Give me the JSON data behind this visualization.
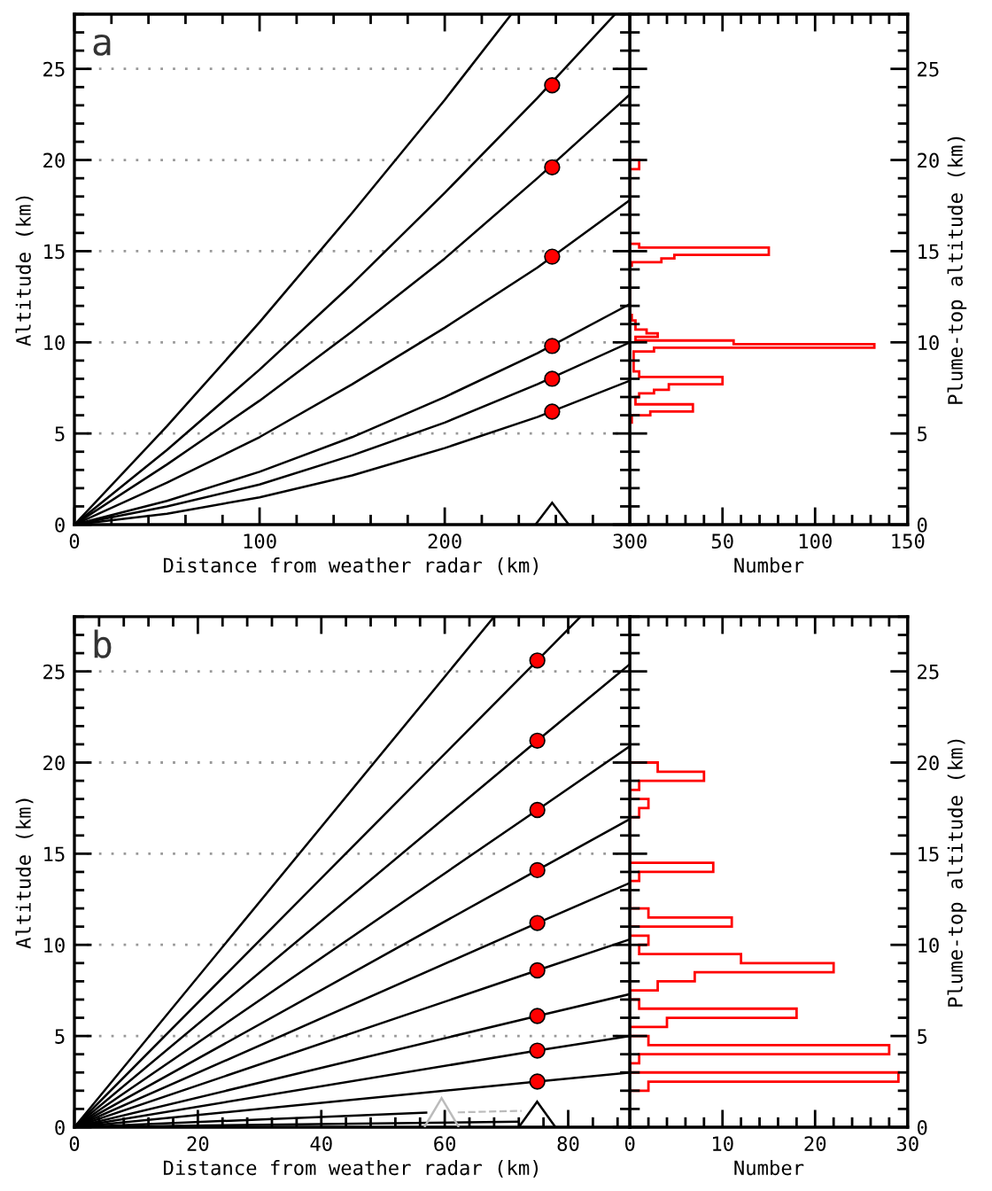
{
  "chart_data": [
    {
      "type": "line",
      "title": "a",
      "xlabel": "Distance from weather radar (km)",
      "ylabel": "Altitude (km)",
      "xlim": [
        0,
        300
      ],
      "xticks": [
        0,
        100,
        200,
        300
      ],
      "ylim": [
        0,
        28
      ],
      "yticks": [
        0,
        5,
        10,
        15,
        20,
        25
      ],
      "grid": "y",
      "series": [
        {
          "type": "line",
          "color": "#000000",
          "x": [
            0,
            50,
            100,
            150,
            200,
            250,
            300
          ],
          "values": [
            0,
            0.6,
            1.5,
            2.7,
            4.2,
            5.9,
            7.9
          ]
        },
        {
          "type": "line",
          "color": "#000000",
          "x": [
            0,
            50,
            100,
            150,
            200,
            250,
            300
          ],
          "values": [
            0,
            1.0,
            2.2,
            3.8,
            5.6,
            7.7,
            10.0
          ]
        },
        {
          "type": "line",
          "color": "#000000",
          "x": [
            0,
            50,
            100,
            150,
            200,
            250,
            300
          ],
          "values": [
            0,
            1.3,
            2.9,
            4.8,
            7.0,
            9.4,
            12.1
          ]
        },
        {
          "type": "line",
          "color": "#000000",
          "x": [
            0,
            50,
            100,
            150,
            200,
            250,
            300
          ],
          "values": [
            0,
            2.3,
            4.8,
            7.7,
            10.8,
            14.1,
            17.8
          ]
        },
        {
          "type": "line",
          "color": "#000000",
          "x": [
            0,
            50,
            100,
            150,
            200,
            250,
            300
          ],
          "values": [
            0,
            3.3,
            6.8,
            10.6,
            14.6,
            19.0,
            23.6
          ]
        },
        {
          "type": "line",
          "color": "#000000",
          "x": [
            0,
            50,
            100,
            150,
            200,
            250,
            292
          ],
          "values": [
            0,
            4.1,
            8.5,
            13.2,
            18.2,
            23.4,
            28
          ]
        },
        {
          "type": "line",
          "color": "#000000",
          "x": [
            0,
            50,
            100,
            150,
            200,
            236
          ],
          "values": [
            0,
            5.4,
            11.1,
            17.1,
            23.3,
            28
          ]
        },
        {
          "type": "scatter",
          "color": "#ff0000",
          "marker": "circle",
          "x": [
            258,
            258,
            258,
            258,
            258,
            258
          ],
          "values": [
            6.2,
            8.0,
            9.8,
            14.7,
            19.6,
            24.1
          ]
        }
      ]
    },
    {
      "type": "histogram",
      "orientation": "horizontal",
      "color": "#ff0000",
      "xlabel": "Number",
      "ylabel": "Plume-top altitude (km)",
      "xlim": [
        0,
        150
      ],
      "xticks": [
        {
          "value": 0,
          "label": null
        },
        50,
        100,
        150
      ],
      "ylim": [
        0,
        28
      ],
      "yticks": [
        0,
        5,
        10,
        15,
        20,
        25
      ],
      "bins": [
        5.6,
        6.0,
        6.2,
        6.6,
        7.0,
        7.2,
        7.4,
        7.7,
        8.1,
        8.4,
        9.5,
        9.7,
        9.9,
        10.1,
        10.3,
        10.5,
        10.7,
        11.2,
        11.5,
        14.2,
        14.4,
        14.6,
        14.8,
        15.2,
        15.4,
        19.5,
        20.0
      ],
      "values": [
        1,
        11,
        34,
        3,
        5,
        13,
        21,
        50,
        5,
        2,
        13,
        132,
        56,
        3,
        15,
        9,
        3,
        1,
        0,
        1,
        17,
        24,
        75,
        5,
        0,
        5
      ]
    },
    {
      "type": "line",
      "title": "b",
      "xlabel": "Distance from weather radar (km)",
      "ylabel": "Altitude (km)",
      "xlim": [
        0,
        90
      ],
      "xticks": [
        0,
        20,
        40,
        60,
        80
      ],
      "ylim": [
        0,
        28
      ],
      "yticks": [
        0,
        5,
        10,
        15,
        20,
        25
      ],
      "grid": "y",
      "series": [
        {
          "type": "line",
          "color": "#000000",
          "x": [
            0,
            72
          ],
          "values": [
            0,
            0.3
          ]
        },
        {
          "type": "line",
          "color": "#000000",
          "x": [
            0,
            57
          ],
          "values": [
            0,
            0.8
          ]
        },
        {
          "type": "line",
          "color": "#000000",
          "x": [
            0,
            75,
            90
          ],
          "values": [
            0,
            2.5,
            3.0
          ]
        },
        {
          "type": "line",
          "color": "#000000",
          "x": [
            0,
            75,
            90
          ],
          "values": [
            0,
            4.2,
            5.0
          ]
        },
        {
          "type": "line",
          "color": "#000000",
          "x": [
            0,
            75,
            90
          ],
          "values": [
            0,
            6.1,
            7.3
          ]
        },
        {
          "type": "line",
          "color": "#000000",
          "x": [
            0,
            75,
            90
          ],
          "values": [
            0,
            8.6,
            10.3
          ]
        },
        {
          "type": "line",
          "color": "#000000",
          "x": [
            0,
            75,
            90
          ],
          "values": [
            0,
            11.2,
            13.4
          ]
        },
        {
          "type": "line",
          "color": "#000000",
          "x": [
            0,
            75,
            90
          ],
          "values": [
            0,
            14.1,
            16.9
          ]
        },
        {
          "type": "line",
          "color": "#000000",
          "x": [
            0,
            75,
            90
          ],
          "values": [
            0,
            17.4,
            20.9
          ]
        },
        {
          "type": "line",
          "color": "#000000",
          "x": [
            0,
            75,
            90
          ],
          "values": [
            0,
            21.2,
            25.4
          ]
        },
        {
          "type": "line",
          "color": "#000000",
          "x": [
            0,
            75,
            82
          ],
          "values": [
            0,
            25.6,
            28
          ]
        },
        {
          "type": "line",
          "color": "#000000",
          "x": [
            0,
            68
          ],
          "values": [
            0,
            28
          ]
        },
        {
          "type": "scatter",
          "color": "#ff0000",
          "marker": "circle",
          "x": [
            75,
            75,
            75,
            75,
            75,
            75,
            75,
            75,
            75
          ],
          "values": [
            2.5,
            4.2,
            6.1,
            8.6,
            11.2,
            14.1,
            17.4,
            21.2,
            25.6
          ]
        }
      ]
    },
    {
      "type": "histogram",
      "orientation": "horizontal",
      "color": "#ff0000",
      "xlabel": "Number",
      "ylabel": "Plume-top altitude (km)",
      "xlim": [
        0,
        30
      ],
      "xticks": [
        0,
        10,
        20,
        30
      ],
      "ylim": [
        0,
        28
      ],
      "yticks": [
        0,
        5,
        10,
        15,
        20,
        25
      ],
      "bins": [
        2.0,
        2.5,
        3.0,
        3.5,
        4.0,
        4.5,
        5.0,
        5.5,
        6.0,
        6.5,
        7.0,
        7.5,
        8.0,
        8.5,
        9.0,
        9.5,
        10.0,
        10.5,
        11.0,
        11.5,
        12.0,
        12.5,
        13.0,
        13.5,
        14.0,
        14.5,
        15.0,
        15.5,
        16.0,
        16.5,
        17.0,
        17.5,
        18.0,
        18.5,
        19.0,
        19.5,
        20.0
      ],
      "values": [
        2,
        29,
        0,
        1,
        28,
        2,
        0,
        4,
        18,
        1,
        0,
        3,
        7,
        22,
        12,
        1,
        2,
        0,
        11,
        2,
        0,
        0,
        0,
        1,
        9,
        0,
        0,
        0,
        0,
        0,
        1,
        2,
        0,
        1,
        8,
        3
      ]
    }
  ]
}
